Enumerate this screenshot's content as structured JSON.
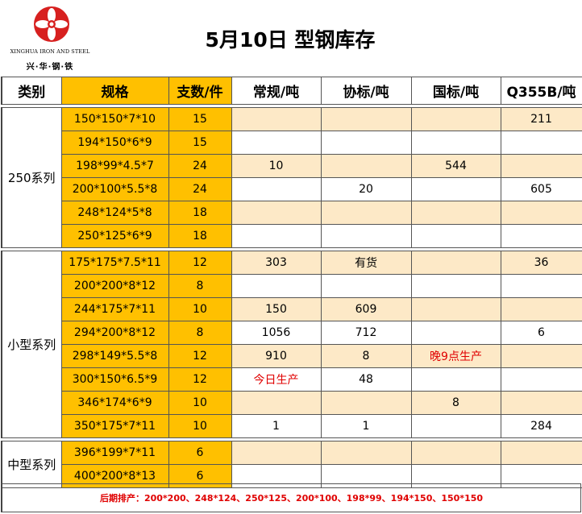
{
  "logo": {
    "english": "XINGHUA IRON AND STEEL",
    "chinese": "兴·华·钢·铁",
    "color": "#d7201f"
  },
  "title": "5月10日 型钢库存",
  "headers": {
    "category": "类别",
    "spec": "规格",
    "count": "支数/件",
    "regular": "常规/吨",
    "association": "协标/吨",
    "national": "国标/吨",
    "q355b": "Q355B/吨"
  },
  "groups": {
    "g250": {
      "name": "250系列",
      "rows": {
        "r0": {
          "spec": "150*150*7*10",
          "count": "15",
          "regular": "",
          "association": "",
          "national": "",
          "q355b": "211"
        },
        "r1": {
          "spec": "194*150*6*9",
          "count": "15",
          "regular": "",
          "association": "",
          "national": "",
          "q355b": ""
        },
        "r2": {
          "spec": "198*99*4.5*7",
          "count": "24",
          "regular": "10",
          "association": "",
          "national": "544",
          "q355b": ""
        },
        "r3": {
          "spec": "200*100*5.5*8",
          "count": "24",
          "regular": "",
          "association": "20",
          "national": "",
          "q355b": "605"
        },
        "r4": {
          "spec": "248*124*5*8",
          "count": "18",
          "regular": "",
          "association": "",
          "national": "",
          "q355b": ""
        },
        "r5": {
          "spec": "250*125*6*9",
          "count": "18",
          "regular": "",
          "association": "",
          "national": "",
          "q355b": ""
        }
      }
    },
    "small": {
      "name": "小型系列",
      "rows": {
        "r0": {
          "spec": "175*175*7.5*11",
          "count": "12",
          "regular": "303",
          "association": "有货",
          "national": "",
          "q355b": "36"
        },
        "r1": {
          "spec": "200*200*8*12",
          "count": "8",
          "regular": "",
          "association": "",
          "national": "",
          "q355b": ""
        },
        "r2": {
          "spec": "244*175*7*11",
          "count": "10",
          "regular": "150",
          "association": "609",
          "national": "",
          "q355b": ""
        },
        "r3": {
          "spec": "294*200*8*12",
          "count": "8",
          "regular": "1056",
          "association": "712",
          "national": "",
          "q355b": "6"
        },
        "r4": {
          "spec": "298*149*5.5*8",
          "count": "12",
          "regular": "910",
          "association": "8",
          "national": "晚9点生产",
          "q355b": ""
        },
        "r5": {
          "spec": "300*150*6.5*9",
          "count": "12",
          "regular": "今日生产",
          "association": "48",
          "national": "",
          "q355b": ""
        },
        "r6": {
          "spec": "346*174*6*9",
          "count": "10",
          "regular": "",
          "association": "",
          "national": "8",
          "q355b": ""
        },
        "r7": {
          "spec": "350*175*7*11",
          "count": "10",
          "regular": "1",
          "association": "1",
          "national": "",
          "q355b": "284"
        }
      }
    },
    "medium": {
      "name": "中型系列",
      "rows": {
        "r0": {
          "spec": "396*199*7*11",
          "count": "6",
          "regular": "",
          "association": "",
          "national": "",
          "q355b": ""
        },
        "r1": {
          "spec": "400*200*8*13",
          "count": "6",
          "regular": "",
          "association": "",
          "national": "",
          "q355b": ""
        }
      }
    }
  },
  "footer": "后期排产：200*200、248*124、250*125、200*100、198*99、194*150、150*150",
  "colors": {
    "gold": "#ffc000",
    "light": "#fde9c7",
    "red": "#e00000"
  }
}
